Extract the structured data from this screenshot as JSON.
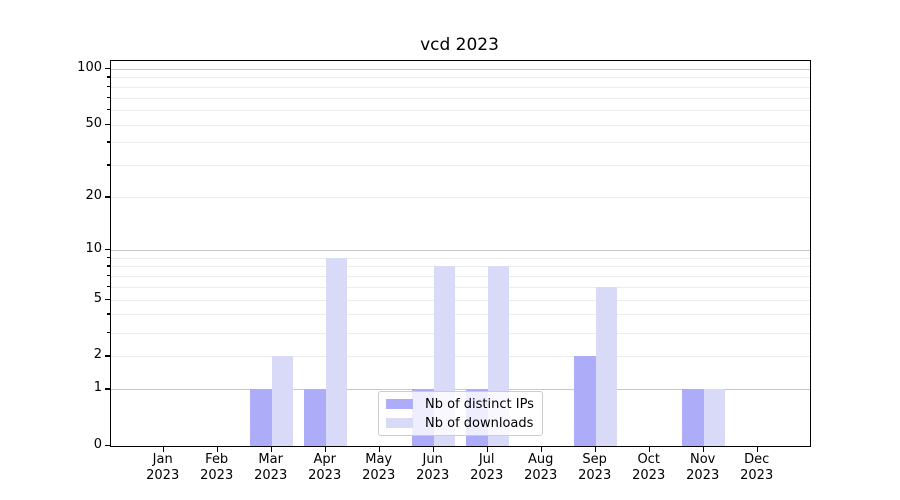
{
  "title": "vcd 2023",
  "chart_data": {
    "type": "bar",
    "title": "vcd 2023",
    "categories": [
      "Jan",
      "Feb",
      "Mar",
      "Apr",
      "May",
      "Jun",
      "Jul",
      "Aug",
      "Sep",
      "Oct",
      "Nov",
      "Dec"
    ],
    "category_year": "2023",
    "series": [
      {
        "name": "Nb of distinct IPs",
        "color": "#acacf8",
        "values": [
          0,
          0,
          1,
          1,
          0,
          1,
          1,
          0,
          2,
          0,
          1,
          0
        ]
      },
      {
        "name": "Nb of downloads",
        "color": "#d9d9f8",
        "values": [
          0,
          0,
          2,
          9,
          0,
          8,
          8,
          0,
          6,
          0,
          1,
          0
        ]
      }
    ],
    "xlabel": "",
    "ylabel": "",
    "yscale": "log1p",
    "ylim": [
      0,
      110
    ],
    "yticks_labeled": [
      0,
      1,
      2,
      5,
      10,
      20,
      50,
      100
    ],
    "ygrid_major": [
      1,
      10,
      100
    ],
    "ygrid_minor": [
      2,
      3,
      4,
      5,
      6,
      7,
      8,
      9,
      20,
      30,
      40,
      50,
      60,
      70,
      80,
      90
    ],
    "grid": "on",
    "legend_position": "lower center",
    "colors": {
      "grid_major": "#c8c8c8",
      "grid_minor": "#ececec",
      "spine": "#000000",
      "text": "#000000",
      "legend_border": "#cccccc"
    }
  }
}
